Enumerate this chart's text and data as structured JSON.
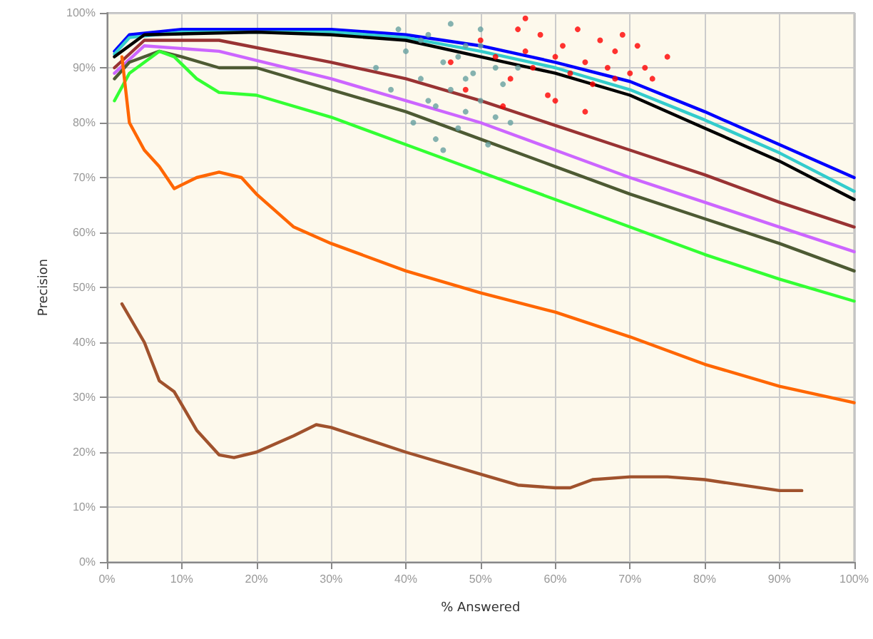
{
  "chart_data": {
    "type": "line",
    "xlabel": "% Answered",
    "ylabel": "Precision",
    "xlim": [
      0,
      100
    ],
    "ylim": [
      0,
      100
    ],
    "xticks": [
      {
        "value": 0,
        "label": "0%"
      },
      {
        "value": 10,
        "label": "10%"
      },
      {
        "value": 20,
        "label": "20%"
      },
      {
        "value": 30,
        "label": "30%"
      },
      {
        "value": 40,
        "label": "40%"
      },
      {
        "value": 50,
        "label": "50%"
      },
      {
        "value": 60,
        "label": "60%"
      },
      {
        "value": 70,
        "label": "70%"
      },
      {
        "value": 80,
        "label": "80%"
      },
      {
        "value": 90,
        "label": "90%"
      },
      {
        "value": 100,
        "label": "100%"
      }
    ],
    "yticks": [
      {
        "value": 0,
        "label": "0%"
      },
      {
        "value": 10,
        "label": "10%"
      },
      {
        "value": 20,
        "label": "20%"
      },
      {
        "value": 30,
        "label": "30%"
      },
      {
        "value": 40,
        "label": "40%"
      },
      {
        "value": 50,
        "label": "50%"
      },
      {
        "value": 60,
        "label": "60%"
      },
      {
        "value": 70,
        "label": "70%"
      },
      {
        "value": 80,
        "label": "80%"
      },
      {
        "value": 90,
        "label": "90%"
      },
      {
        "value": 100,
        "label": "100%"
      }
    ],
    "grid": true,
    "marker": "none",
    "line_style": "solid",
    "series": [
      {
        "color": "#0000ff",
        "x": [
          1,
          3,
          10,
          20,
          30,
          40,
          50,
          60,
          70,
          80,
          90,
          100
        ],
        "values": [
          93,
          96,
          97,
          97,
          97,
          96,
          94,
          91,
          87.5,
          82,
          76,
          70
        ]
      },
      {
        "color": "#33cccc",
        "x": [
          1,
          3,
          10,
          20,
          30,
          40,
          50,
          60,
          70,
          80,
          90,
          100
        ],
        "values": [
          92.5,
          95.5,
          96.5,
          96.5,
          96.5,
          95.5,
          93,
          90,
          86,
          80.5,
          74.5,
          67.5
        ]
      },
      {
        "color": "#000000",
        "x": [
          1,
          5,
          20,
          30,
          40,
          50,
          60,
          70,
          80,
          90,
          100
        ],
        "values": [
          92,
          96,
          96.5,
          96,
          95,
          92,
          89,
          85,
          79,
          73,
          66
        ]
      },
      {
        "color": "#993333",
        "x": [
          1,
          5,
          15,
          30,
          40,
          50,
          60,
          70,
          80,
          90,
          100
        ],
        "values": [
          90,
          95,
          95,
          91,
          88,
          84,
          79.5,
          75,
          70.5,
          65.5,
          61
        ]
      },
      {
        "color": "#cc66ff",
        "x": [
          1,
          5,
          15,
          30,
          40,
          50,
          60,
          70,
          80,
          90,
          100
        ],
        "values": [
          89,
          94,
          93,
          88,
          84,
          80,
          75,
          70,
          65.5,
          61,
          56.5
        ]
      },
      {
        "color": "#4d5a33",
        "x": [
          1,
          3,
          7,
          10,
          15,
          20,
          30,
          40,
          50,
          60,
          70,
          80,
          90,
          100
        ],
        "values": [
          88,
          91,
          93,
          92,
          90,
          90,
          86,
          82,
          77,
          72,
          67,
          62.5,
          58,
          53
        ]
      },
      {
        "color": "#33ff33",
        "x": [
          1,
          3,
          7,
          9,
          12,
          15,
          20,
          30,
          40,
          50,
          60,
          70,
          80,
          90,
          100
        ],
        "values": [
          84,
          89,
          93,
          92,
          88,
          85.5,
          85,
          81,
          76,
          71,
          66,
          61,
          56,
          51.5,
          47.5
        ]
      },
      {
        "color": "#ff6600",
        "x": [
          2,
          3,
          5,
          7,
          9,
          12,
          15,
          18,
          20,
          25,
          30,
          40,
          50,
          60,
          70,
          80,
          90,
          100
        ],
        "values": [
          92,
          80,
          75,
          72,
          68,
          70,
          71,
          70,
          67,
          61,
          58,
          53,
          49,
          45.5,
          41,
          36,
          32,
          29
        ]
      },
      {
        "color": "#a0522d",
        "x": [
          2,
          5,
          7,
          9,
          12,
          15,
          17,
          20,
          25,
          28,
          30,
          40,
          50,
          55,
          60,
          62,
          65,
          70,
          75,
          80,
          90,
          93
        ],
        "values": [
          47,
          40,
          33,
          31,
          24,
          19.5,
          19,
          20,
          23,
          25,
          24.5,
          20,
          16,
          14,
          13.5,
          13.5,
          15,
          15.5,
          15.5,
          15,
          13,
          13
        ]
      },
      {
        "type": "scatter",
        "marker": "circle",
        "color": "#66a0a0",
        "x": [
          36,
          38,
          40,
          41,
          42,
          43,
          44,
          44,
          45,
          46,
          46,
          47,
          48,
          48,
          49,
          50,
          50,
          51,
          52,
          53,
          54,
          55,
          42,
          39,
          45,
          47,
          50,
          43,
          48,
          52
        ],
        "values": [
          90,
          86,
          93,
          80,
          88,
          96,
          83,
          77,
          91,
          98,
          86,
          79,
          94,
          82,
          89,
          97,
          84,
          76,
          90,
          87,
          80,
          90,
          95,
          97,
          75,
          92,
          94,
          84,
          88,
          81
        ]
      },
      {
        "type": "scatter",
        "marker": "circle",
        "color": "#ff0000",
        "x": [
          46,
          48,
          50,
          52,
          54,
          55,
          56,
          57,
          58,
          59,
          60,
          61,
          62,
          63,
          64,
          65,
          66,
          67,
          68,
          69,
          70,
          71,
          72,
          73,
          75,
          56,
          60,
          64,
          68,
          53
        ],
        "values": [
          91,
          86,
          95,
          92,
          88,
          97,
          93,
          90,
          96,
          85,
          92,
          94,
          89,
          97,
          91,
          87,
          95,
          90,
          93,
          96,
          89,
          94,
          90,
          88,
          92,
          99,
          84,
          82,
          88,
          83
        ]
      }
    ]
  }
}
